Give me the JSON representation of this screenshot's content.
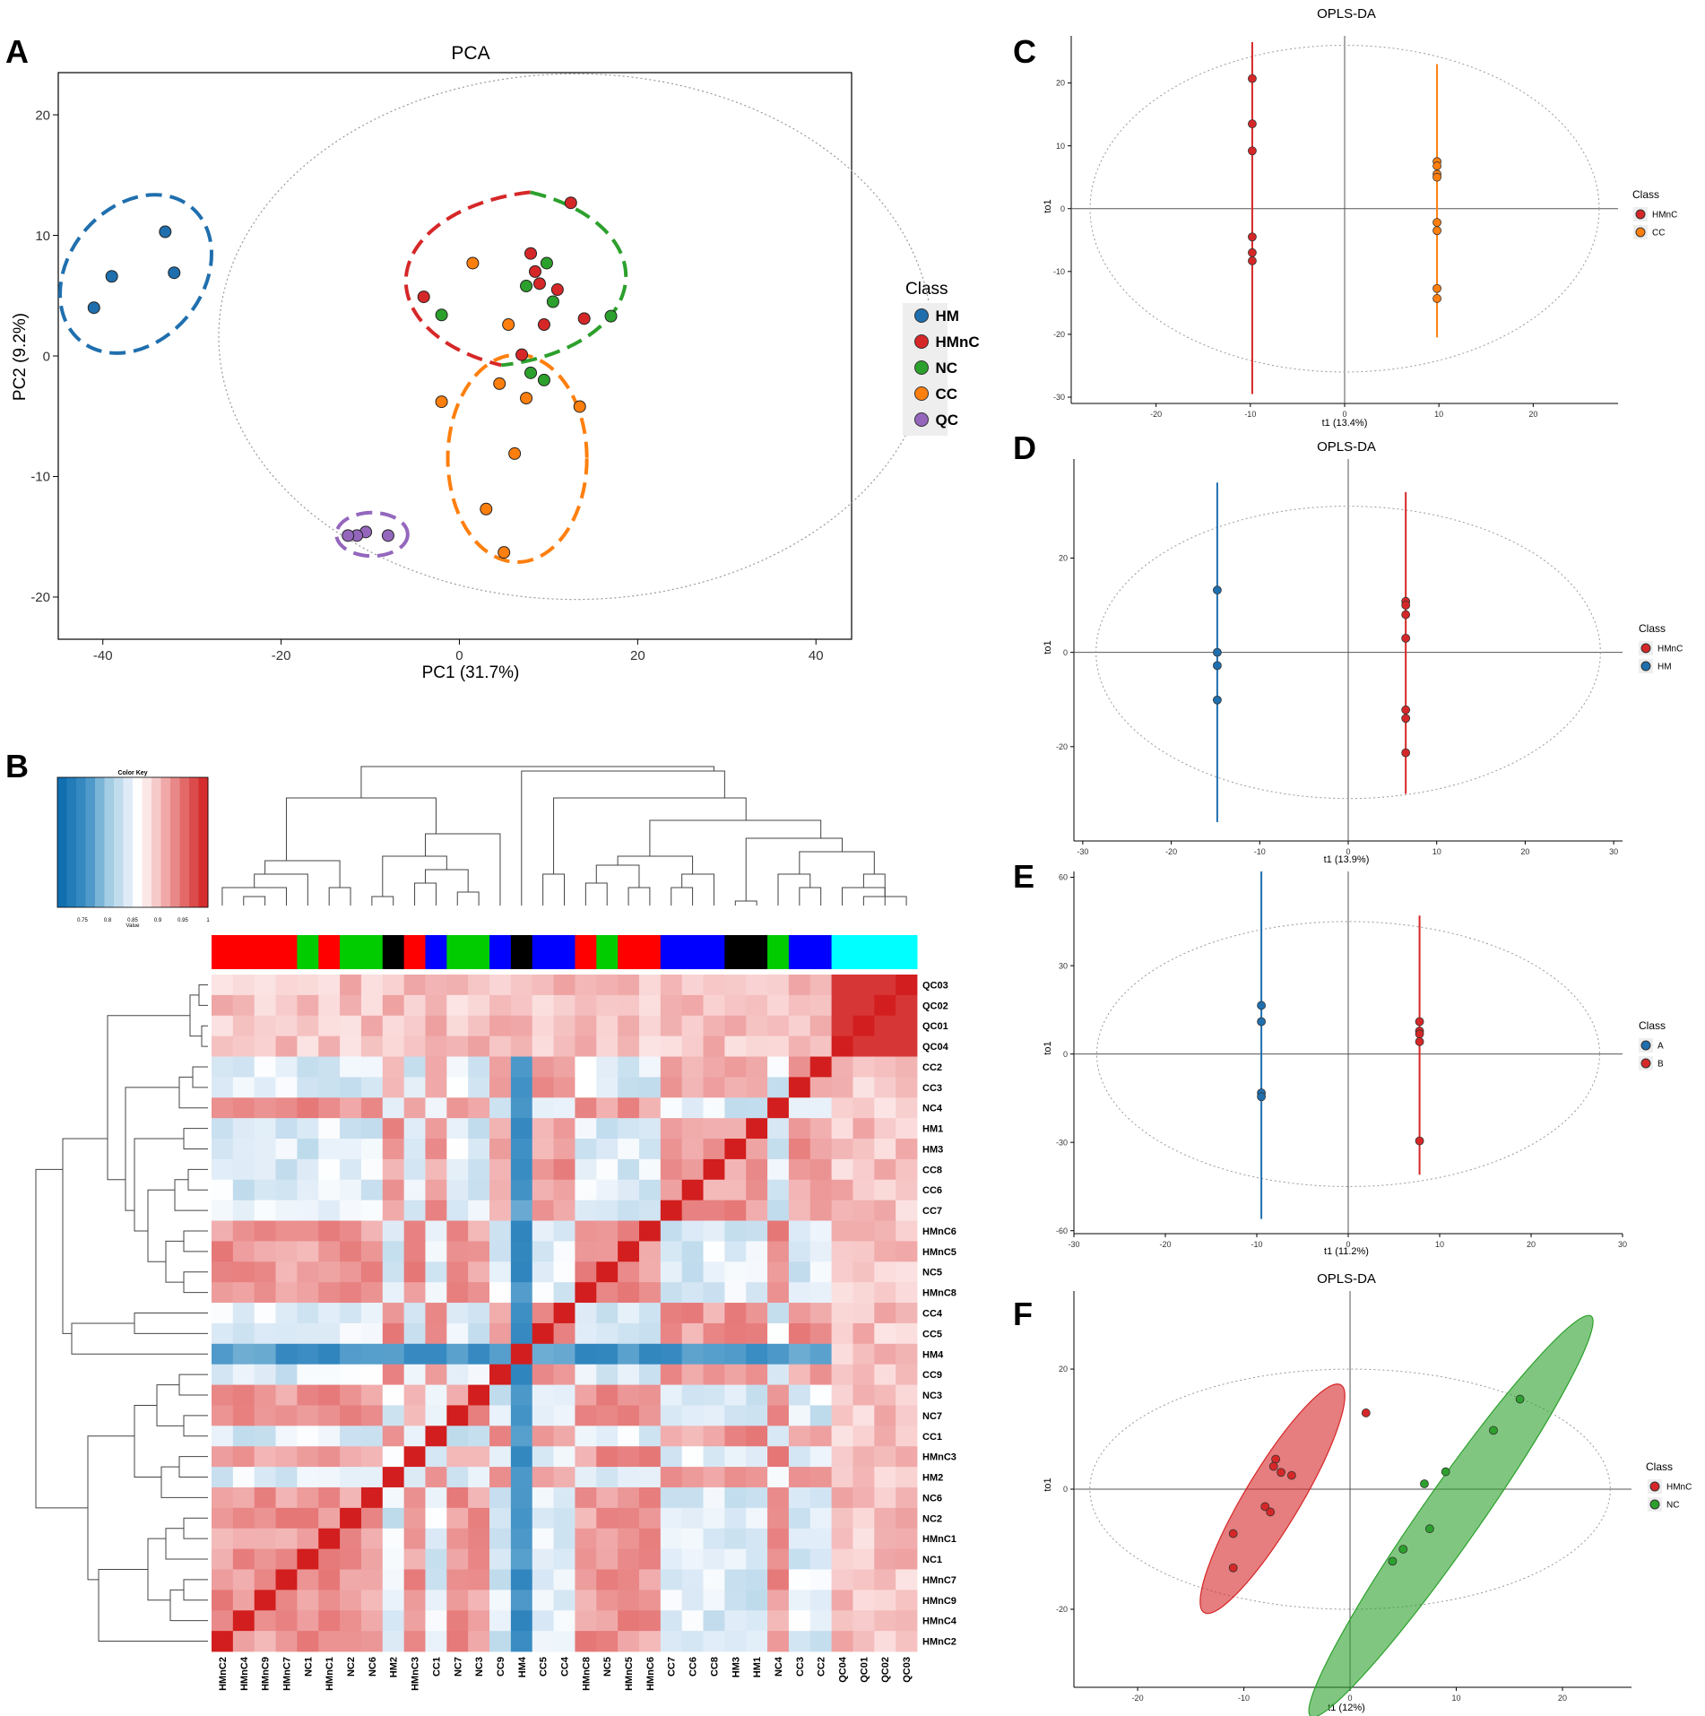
{
  "figure": {
    "panel_letters": [
      "A",
      "B",
      "C",
      "D",
      "E",
      "F"
    ]
  },
  "colors": {
    "HM": "#1f6fae",
    "HMnC": "#d62728",
    "NC": "#2ca02c",
    "CC": "#ff7f0e",
    "QC": "#9467bd",
    "A": "#1f6fae",
    "B": "#d62728",
    "bar_red": "#ff0000",
    "bar_green": "#00cc00",
    "bar_blue": "#0000ff",
    "bar_black": "#000000",
    "bar_cyan": "#00ffff",
    "axis": "#000000",
    "ellipse_dotted": "#999999"
  },
  "chart_data": [
    {
      "id": "A",
      "type": "scatter",
      "title": "PCA",
      "xlabel": "PC1 (31.7%)",
      "ylabel": "PC2 (9.2%)",
      "xlim": [
        -45,
        44
      ],
      "ylim": [
        -23.5,
        23.5
      ],
      "xticks": [
        -40,
        -20,
        0,
        20,
        40
      ],
      "yticks": [
        -20,
        -10,
        0,
        10,
        20
      ],
      "legend": {
        "title": "Class",
        "position": "right",
        "entries": [
          "HM",
          "HMnC",
          "NC",
          "CC",
          "QC"
        ]
      },
      "series": [
        {
          "name": "HM",
          "points": [
            [
              -33,
              10.3
            ],
            [
              -32,
              6.9
            ],
            [
              -39,
              6.6
            ],
            [
              -41,
              4.0
            ]
          ]
        },
        {
          "name": "HMnC",
          "points": [
            [
              12.5,
              12.7
            ],
            [
              8,
              8.5
            ],
            [
              8.5,
              7.0
            ],
            [
              9,
              6.0
            ],
            [
              11,
              5.5
            ],
            [
              -4,
              4.9
            ],
            [
              14,
              3.1
            ],
            [
              9.5,
              2.6
            ],
            [
              7,
              0.1
            ]
          ]
        },
        {
          "name": "NC",
          "points": [
            [
              9.8,
              7.7
            ],
            [
              7.5,
              5.8
            ],
            [
              10.5,
              4.5
            ],
            [
              -2,
              3.4
            ],
            [
              17,
              3.3
            ],
            [
              8,
              -1.4
            ],
            [
              9.5,
              -2.0
            ]
          ]
        },
        {
          "name": "CC",
          "points": [
            [
              1.5,
              7.7
            ],
            [
              5.5,
              2.6
            ],
            [
              4.5,
              -2.3
            ],
            [
              7.5,
              -3.5
            ],
            [
              -2,
              -3.8
            ],
            [
              13.5,
              -4.2
            ],
            [
              6.2,
              -8.1
            ],
            [
              3,
              -12.7
            ],
            [
              5,
              -16.3
            ]
          ]
        },
        {
          "name": "QC",
          "points": [
            [
              -10.5,
              -14.6
            ],
            [
              -11.5,
              -14.9
            ],
            [
              -12.5,
              -14.9
            ],
            [
              -8,
              -14.9
            ]
          ]
        }
      ],
      "group_ellipses": [
        {
          "name": "HM",
          "cx": -36.3,
          "cy": 6.8,
          "rx": 7.5,
          "ry": 7.2,
          "angle": -40
        },
        {
          "name": "HMnC-NC",
          "cx": 11,
          "cy": 6.2,
          "rx": 17,
          "ry": 7.5,
          "angle": 0
        },
        {
          "name": "CC",
          "cx": 6.5,
          "cy": -8.5,
          "rx": 7.8,
          "ry": 8.6,
          "angle": 0
        },
        {
          "name": "QC",
          "cx": -9.8,
          "cy": -14.8,
          "rx": 4,
          "ry": 1.8,
          "angle": 0
        }
      ],
      "confidence_ellipse": {
        "cx": 13,
        "cy": 1.6,
        "rx": 40,
        "ry": 21.8
      }
    },
    {
      "id": "B",
      "type": "heatmap",
      "color_key_title": "Color Key",
      "color_key_xlabel": "Value",
      "color_key_ticks": [
        "0.75",
        "0.8",
        "0.85",
        "0.9",
        "0.95",
        "1"
      ],
      "color_key_range": [
        0.7,
        1.0
      ],
      "columns": [
        "HMnC2",
        "HMnC4",
        "HMnC9",
        "HMnC7",
        "NC1",
        "HMnC1",
        "NC2",
        "NC6",
        "HM2",
        "HMnC3",
        "CC1",
        "NC7",
        "NC3",
        "CC9",
        "HM4",
        "CC5",
        "CC4",
        "HMnC8",
        "NC5",
        "HMnC5",
        "HMnC6",
        "CC7",
        "CC6",
        "CC8",
        "HM3",
        "HM1",
        "NC4",
        "CC3",
        "CC2",
        "QC04",
        "QC01",
        "QC02",
        "QC03"
      ],
      "rows": [
        "QC03",
        "QC02",
        "QC01",
        "QC04",
        "CC2",
        "CC3",
        "NC4",
        "HM1",
        "HM3",
        "CC8",
        "CC6",
        "CC7",
        "HMnC6",
        "HMnC5",
        "NC5",
        "HMnC8",
        "CC4",
        "CC5",
        "HM4",
        "CC9",
        "NC3",
        "NC7",
        "CC1",
        "HMnC3",
        "HM2",
        "NC6",
        "NC2",
        "HMnC1",
        "NC1",
        "HMnC7",
        "HMnC9",
        "HMnC4",
        "HMnC2"
      ],
      "group_bar": [
        "red",
        "red",
        "red",
        "red",
        "green",
        "red",
        "green",
        "green",
        "black",
        "red",
        "blue",
        "green",
        "green",
        "blue",
        "black",
        "blue",
        "blue",
        "red",
        "green",
        "red",
        "red",
        "blue",
        "blue",
        "blue",
        "black",
        "black",
        "green",
        "blue",
        "blue",
        "cyan",
        "cyan",
        "cyan",
        "cyan"
      ]
    },
    {
      "id": "C",
      "type": "scatter",
      "title": "OPLS-DA",
      "xlabel": "t1 (13.4%)",
      "ylabel": "to1",
      "xlim": [
        -29,
        29
      ],
      "ylim": [
        -31,
        27.5
      ],
      "xticks": [
        -20,
        -10,
        0,
        10,
        20
      ],
      "yticks": [
        -30,
        -20,
        -10,
        0,
        10,
        20
      ],
      "legend": {
        "title": "Class",
        "position": "right",
        "entries": [
          "HMnC",
          "CC"
        ]
      },
      "confidence_ellipse": {
        "cx": 0,
        "cy": 0,
        "rx": 27,
        "ry": 26
      },
      "series": [
        {
          "name": "HMnC",
          "x": -9.8,
          "y": [
            20.7,
            13.5,
            9.2,
            -4.5,
            -7,
            -8.3
          ],
          "line": [
            -29.5,
            26.5
          ]
        },
        {
          "name": "CC",
          "x": 9.8,
          "y": [
            7.5,
            6.8,
            5.5,
            5.0,
            -2.2,
            -3.5,
            -12.7,
            -14.3
          ],
          "line": [
            -20.5,
            23
          ]
        }
      ]
    },
    {
      "id": "D",
      "type": "scatter",
      "title": "OPLS-DA",
      "xlabel": "t1 (13.9%)",
      "ylabel": "to1",
      "xlim": [
        -31,
        31
      ],
      "ylim": [
        -40,
        41
      ],
      "xticks": [
        -30,
        -20,
        -10,
        0,
        10,
        20,
        30
      ],
      "yticks": [
        -20,
        0,
        20
      ],
      "legend": {
        "title": "Class",
        "position": "right",
        "entries": [
          "HMnC",
          "HM"
        ]
      },
      "confidence_ellipse": {
        "cx": 0,
        "cy": 0,
        "rx": 28.5,
        "ry": 31
      },
      "series": [
        {
          "name": "HMnC",
          "x": 6.5,
          "y": [
            10.8,
            10.0,
            8.0,
            3.0,
            -12.2,
            -14,
            -21.3
          ],
          "line": [
            -30,
            34
          ]
        },
        {
          "name": "HM",
          "x": -14.8,
          "y": [
            13.2,
            0,
            -2.8,
            -10.1
          ],
          "line": [
            -36,
            36
          ]
        }
      ]
    },
    {
      "id": "E",
      "type": "scatter",
      "title": "",
      "xlabel": "t1 (11.2%)",
      "ylabel": "to1",
      "xlim": [
        -30,
        30
      ],
      "ylim": [
        -61,
        62
      ],
      "xticks": [
        -30,
        -20,
        -10,
        0,
        10,
        20,
        30
      ],
      "yticks": [
        -60,
        -30,
        0,
        30,
        60
      ],
      "legend": {
        "title": "Class",
        "position": "right",
        "entries": [
          "A",
          "B"
        ]
      },
      "confidence_ellipse": {
        "cx": 0,
        "cy": 0,
        "rx": 27.5,
        "ry": 45
      },
      "series": [
        {
          "name": "A",
          "x": -9.5,
          "y": [
            16.5,
            11,
            -13.2,
            -14.5
          ],
          "line": [
            -56,
            62
          ]
        },
        {
          "name": "B",
          "x": 7.8,
          "y": [
            11,
            7.8,
            6.8,
            4.2,
            -29.5
          ],
          "line": [
            -41,
            47
          ]
        }
      ]
    },
    {
      "id": "F",
      "type": "scatter",
      "title": "OPLS-DA",
      "xlabel": "t1 (12%)",
      "ylabel": "to1",
      "xlim": [
        -26,
        26.5
      ],
      "ylim": [
        -33,
        33
      ],
      "xticks": [
        -20,
        -10,
        0,
        10,
        20
      ],
      "yticks": [
        -20,
        0,
        20
      ],
      "legend": {
        "title": "Class",
        "position": "right",
        "entries": [
          "HMnC",
          "NC"
        ]
      },
      "confidence_ellipse": {
        "cx": 0,
        "cy": 0,
        "rx": 24.5,
        "ry": 20
      },
      "group_ellipses": [
        {
          "name": "HMnC",
          "cx": -7.3,
          "cy": -1.6,
          "rx": 12.5,
          "ry": 4.6,
          "angle": 59
        },
        {
          "name": "NC",
          "cx": 9.5,
          "cy": -4.5,
          "rx": 23,
          "ry": 4.8,
          "angle": 55
        }
      ],
      "series": [
        {
          "name": "HMnC",
          "points": [
            [
              1.5,
              12.7
            ],
            [
              -7,
              5
            ],
            [
              -7.2,
              3.8
            ],
            [
              -6.5,
              2.8
            ],
            [
              -5.5,
              2.3
            ],
            [
              -8,
              -2.9
            ],
            [
              -7.5,
              -3.8
            ],
            [
              -11,
              -7.4
            ],
            [
              -11,
              -13.1
            ]
          ]
        },
        {
          "name": "NC",
          "points": [
            [
              16,
              15
            ],
            [
              13.5,
              9.8
            ],
            [
              9,
              2.9
            ],
            [
              7,
              0.9
            ],
            [
              7.5,
              -6.6
            ],
            [
              5,
              -10
            ],
            [
              4,
              -12
            ]
          ]
        }
      ]
    }
  ]
}
